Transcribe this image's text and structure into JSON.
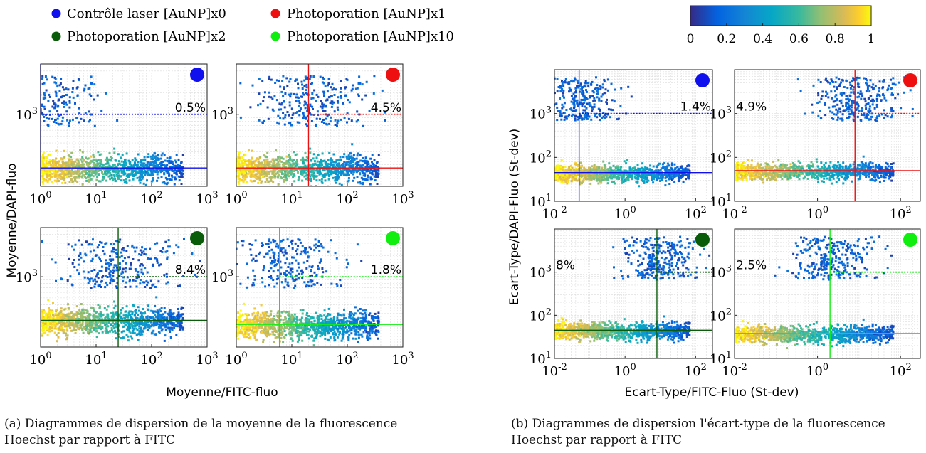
{
  "legend": {
    "items": [
      {
        "label": "Contrôle laser [AuNP]x0",
        "color": "#1010ee"
      },
      {
        "label": "Photoporation [AuNP]x1",
        "color": "#ee1010"
      },
      {
        "label": "Photoporation [AuNP]x2",
        "color": "#0a5c0a"
      },
      {
        "label": "Photoporation [AuNP]x10",
        "color": "#10ee10"
      }
    ]
  },
  "colorbar": {
    "ticks": [
      "0",
      "0.2",
      "0.4",
      "0.6",
      "0.8",
      "1"
    ],
    "colormap": "parula",
    "range": [
      0,
      1
    ]
  },
  "captions": {
    "a": "(a) Diagrammes de dispersion de la moyenne de la fluorescence Hoechst par rapport à FITC",
    "b": "(b) Diagrammes de dispersion l'écart-type de la fluorescence Hoechst par rapport à FITC"
  },
  "chart_data": [
    {
      "type": "scatter",
      "panel": "a1",
      "group": "Contrôle laser [AuNP]x0",
      "xlabel": "Moyenne/FITC-fluo",
      "ylabel": "Moyenne/DAPI-fluo",
      "xscale": "log",
      "yscale": "log",
      "xlim": [
        1,
        1000
      ],
      "ylim": [
        100,
        5000
      ],
      "xticks": [
        "10^0",
        "10^1",
        "10^2",
        "10^3"
      ],
      "yticks": [
        "10^3"
      ],
      "threshold_x": 1,
      "threshold_y": 1000,
      "baseline_y": 180,
      "annotation": "0.5%",
      "marker_color": "#1010ee"
    },
    {
      "type": "scatter",
      "panel": "a2",
      "group": "Photoporation [AuNP]x1",
      "xlabel": "Moyenne/FITC-fluo",
      "ylabel": "Moyenne/DAPI-fluo",
      "xscale": "log",
      "yscale": "log",
      "xlim": [
        1,
        1000
      ],
      "ylim": [
        100,
        5000
      ],
      "xticks": [
        "10^0",
        "10^1",
        "10^2",
        "10^3"
      ],
      "yticks": [
        "10^3"
      ],
      "threshold_x": 20,
      "threshold_y": 1000,
      "baseline_y": 180,
      "annotation": "4.5%",
      "marker_color": "#ee1010"
    },
    {
      "type": "scatter",
      "panel": "a3",
      "group": "Photoporation [AuNP]x2",
      "xlabel": "Moyenne/FITC-fluo",
      "ylabel": "Moyenne/DAPI-fluo",
      "xscale": "log",
      "yscale": "log",
      "xlim": [
        1,
        1000
      ],
      "ylim": [
        100,
        5000
      ],
      "xticks": [
        "10^0",
        "10^1",
        "10^2",
        "10^3"
      ],
      "yticks": [
        "10^3"
      ],
      "threshold_x": 25,
      "threshold_y": 1000,
      "baseline_y": 240,
      "annotation": "8.4%",
      "marker_color": "#0a5c0a"
    },
    {
      "type": "scatter",
      "panel": "a4",
      "group": "Photoporation [AuNP]x10",
      "xlabel": "Moyenne/FITC-fluo",
      "ylabel": "Moyenne/DAPI-fluo",
      "xscale": "log",
      "yscale": "log",
      "xlim": [
        1,
        1000
      ],
      "ylim": [
        100,
        5000
      ],
      "xticks": [
        "10^0",
        "10^1",
        "10^2",
        "10^3"
      ],
      "yticks": [
        "10^3"
      ],
      "threshold_x": 6,
      "threshold_y": 1000,
      "baseline_y": 210,
      "annotation": "1.8%",
      "marker_color": "#10ee10"
    },
    {
      "type": "scatter",
      "panel": "b1",
      "group": "Contrôle laser [AuNP]x0",
      "xlabel": "Ecart-Type/FITC-Fluo (St-dev)",
      "ylabel": "Ecart-Type/DAPI-Fluo (St-dev)",
      "xscale": "log",
      "yscale": "log",
      "xlim": [
        0.01,
        300
      ],
      "ylim": [
        10,
        10000
      ],
      "xticks": [
        "10^-2",
        "10^0",
        "10^2"
      ],
      "yticks": [
        "10^1",
        "10^2",
        "10^3"
      ],
      "threshold_x": 0.05,
      "threshold_y": 1000,
      "baseline_y": 45,
      "annotation": "1.4%",
      "marker_color": "#1010ee"
    },
    {
      "type": "scatter",
      "panel": "b2",
      "group": "Photoporation [AuNP]x1",
      "xlabel": "Ecart-Type/FITC-Fluo (St-dev)",
      "ylabel": "Ecart-Type/DAPI-Fluo (St-dev)",
      "xscale": "log",
      "yscale": "log",
      "xlim": [
        0.01,
        300
      ],
      "ylim": [
        10,
        10000
      ],
      "xticks": [
        "10^-2",
        "10^0",
        "10^2"
      ],
      "yticks": [
        "10^1",
        "10^2",
        "10^3"
      ],
      "threshold_x": 8,
      "threshold_y": 1000,
      "baseline_y": 50,
      "annotation": "4.9%",
      "marker_color": "#ee1010"
    },
    {
      "type": "scatter",
      "panel": "b3",
      "group": "Photoporation [AuNP]x2",
      "xlabel": "Ecart-Type/FITC-Fluo (St-dev)",
      "ylabel": "Ecart-Type/DAPI-Fluo (St-dev)",
      "xscale": "log",
      "yscale": "log",
      "xlim": [
        0.01,
        300
      ],
      "ylim": [
        10,
        10000
      ],
      "xticks": [
        "10^-2",
        "10^0",
        "10^2"
      ],
      "yticks": [
        "10^1",
        "10^2",
        "10^3"
      ],
      "threshold_x": 8,
      "threshold_y": 1000,
      "baseline_y": 45,
      "annotation": "8%",
      "marker_color": "#0a5c0a"
    },
    {
      "type": "scatter",
      "panel": "b4",
      "group": "Photoporation [AuNP]x10",
      "xlabel": "Ecart-Type/FITC-Fluo (St-dev)",
      "ylabel": "Ecart-Type/DAPI-Fluo (St-dev)",
      "xscale": "log",
      "yscale": "log",
      "xlim": [
        0.01,
        300
      ],
      "ylim": [
        10,
        10000
      ],
      "xticks": [
        "10^-2",
        "10^0",
        "10^2"
      ],
      "yticks": [
        "10^1",
        "10^2",
        "10^3"
      ],
      "threshold_x": 2,
      "threshold_y": 1000,
      "baseline_y": 38,
      "annotation": "2.5%",
      "marker_color": "#10ee10"
    }
  ],
  "axis_titles": {
    "a_x": "Moyenne/FITC-fluo",
    "a_y": "Moyenne/DAPI-fluo",
    "b_x": "Ecart-Type/FITC-Fluo (St-dev)",
    "b_y": "Ecart-Type/DAPI-Fluo (St-dev)"
  }
}
